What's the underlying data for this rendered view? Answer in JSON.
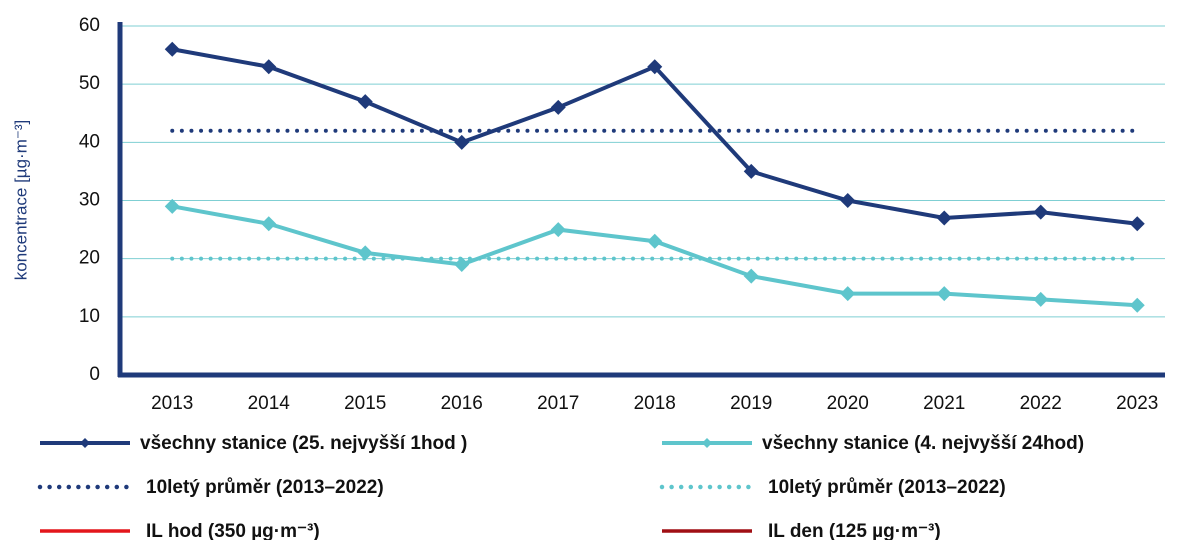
{
  "chart_data": {
    "type": "line",
    "y_label": "koncentrace [µg·m⁻³]",
    "categories": [
      "2013",
      "2014",
      "2015",
      "2016",
      "2017",
      "2018",
      "2019",
      "2020",
      "2021",
      "2022",
      "2023"
    ],
    "series": [
      {
        "name": "všechny stanice (25. nejvyšší 1hod )",
        "color": "#1f3a7a",
        "style": "solid",
        "marker": "diamond",
        "values": [
          56,
          53,
          47,
          40,
          46,
          53,
          35,
          30,
          27,
          28,
          26
        ]
      },
      {
        "name": "všechny stanice (4. nejvyšší 24hod)",
        "color": "#5ec5cc",
        "style": "solid",
        "marker": "diamond",
        "values": [
          29,
          26,
          21,
          19,
          25,
          23,
          17,
          14,
          14,
          13,
          12
        ]
      },
      {
        "name": "10letý průměr (2013–2022)",
        "color": "#1f3a7a",
        "style": "dotted",
        "values": [
          42,
          42,
          42,
          42,
          42,
          42,
          42,
          42,
          42,
          42,
          42
        ]
      },
      {
        "name": "10letý průměr (2013–2022)",
        "color": "#5ec5cc",
        "style": "dotted",
        "values": [
          20,
          20,
          20,
          20,
          20,
          20,
          20,
          20,
          20,
          20,
          20
        ]
      },
      {
        "name": "IL hod (350 µg·m⁻³)",
        "color": "#e3161b",
        "style": "solid",
        "values": [
          null,
          null,
          null,
          null,
          null,
          null,
          null,
          null,
          null,
          null,
          null
        ]
      },
      {
        "name": "IL den (125 µg·m⁻³)",
        "color": "#a00f14",
        "style": "solid",
        "values": [
          null,
          null,
          null,
          null,
          null,
          null,
          null,
          null,
          null,
          null,
          null
        ]
      }
    ],
    "ylim": [
      0,
      60
    ],
    "yticks": [
      0,
      10,
      20,
      30,
      40,
      50,
      60
    ],
    "grid": true
  }
}
